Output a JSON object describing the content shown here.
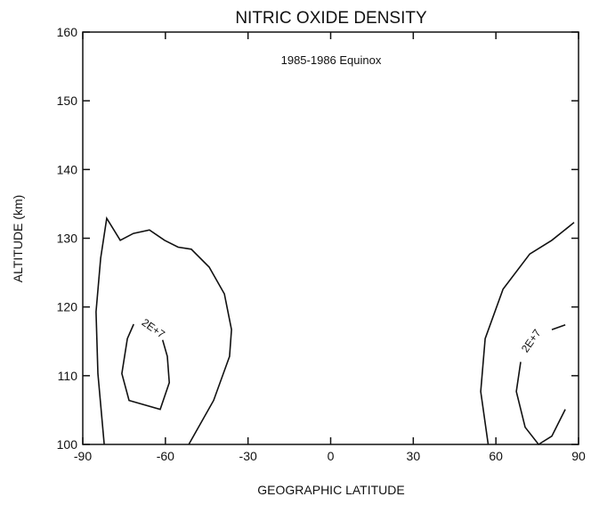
{
  "chart_data": {
    "type": "contour",
    "title": "NITRIC OXIDE DENSITY",
    "subtitle": "1985-1986 Equinox",
    "xlabel": "GEOGRAPHIC LATITUDE",
    "ylabel": "ALTITUDE (km)",
    "xlim": [
      -90,
      90
    ],
    "xticks": [
      -90,
      -60,
      -30,
      0,
      30,
      60,
      90
    ],
    "ylim": [
      100,
      160
    ],
    "yticks": [
      100,
      110,
      120,
      130,
      140,
      150,
      160
    ],
    "color": "#111111",
    "lines": [
      {
        "x": [
          -82.2,
          -84.5,
          -85.2,
          -83.5,
          -81.3,
          -76.4,
          -71.6,
          -65.8,
          -60.3,
          -55.4,
          -50.6,
          -44.1,
          -38.6,
          -36.0,
          -36.7,
          -42.5,
          -51.5
        ],
        "y": [
          100,
          110.3,
          119.3,
          127.1,
          132.9,
          129.7,
          130.7,
          131.2,
          129.7,
          128.7,
          128.4,
          125.8,
          121.9,
          116.7,
          112.8,
          106.4,
          100
        ]
      },
      {
        "x": [
          -71.5,
          -73.8,
          -75.8,
          -73.2,
          -61.9,
          -58.6,
          -59.3,
          -61.0
        ],
        "y": [
          117.5,
          115.4,
          110.3,
          106.4,
          105.1,
          109,
          112.8,
          115.2
        ]
      },
      {
        "x": [
          57.2,
          54.5,
          56.1,
          62.6,
          72.3,
          80.3,
          88.4
        ],
        "y": [
          100,
          107.7,
          115.4,
          122.6,
          127.7,
          129.7,
          132.3
        ]
      },
      {
        "x": [
          69.0,
          67.4,
          70.6,
          75.5,
          80.3,
          85.2
        ],
        "y": [
          112.0,
          107.7,
          102.5,
          100,
          101.2,
          105.1
        ]
      },
      {
        "x": [
          80.3,
          85.2
        ],
        "y": [
          116.7,
          117.4
        ]
      }
    ],
    "annotations": [
      "2E+7",
      "2E+7"
    ]
  }
}
